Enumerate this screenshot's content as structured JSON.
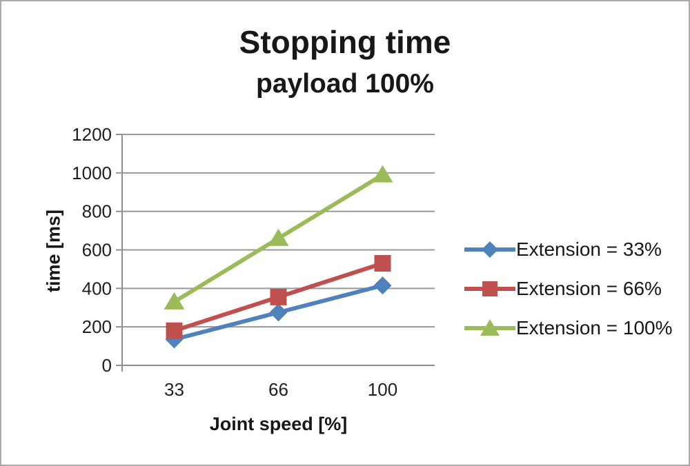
{
  "chart_data": {
    "type": "line",
    "title": "Stopping time",
    "subtitle": "payload 100%",
    "xlabel": "Joint speed [%]",
    "ylabel": "time [ms]",
    "categories": [
      "33",
      "66",
      "100"
    ],
    "series": [
      {
        "name": "Extension = 33%",
        "values": [
          135,
          275,
          415
        ],
        "color": "#4F81BD",
        "marker": "diamond"
      },
      {
        "name": "Extension = 66%",
        "values": [
          180,
          355,
          530
        ],
        "color": "#C0504D",
        "marker": "square"
      },
      {
        "name": "Extension = 100%",
        "values": [
          330,
          660,
          990
        ],
        "color": "#9BBB59",
        "marker": "triangle"
      }
    ],
    "ylim": [
      0,
      1200
    ],
    "yticks": [
      0,
      200,
      400,
      600,
      800,
      1000,
      1200
    ],
    "grid": true,
    "legend_position": "right",
    "colors": {
      "grid": "#999999",
      "axis": "#8f8f8f",
      "tick_text": "#1f1f1f",
      "frame_border": "#a9a9a9",
      "background": "#ffffff"
    }
  }
}
